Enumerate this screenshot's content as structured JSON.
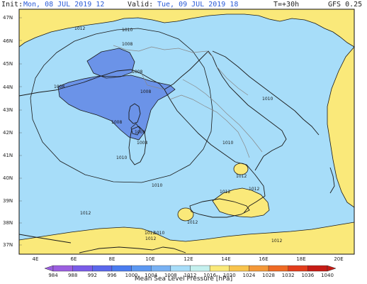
{
  "header": {
    "init_label": "Init:",
    "init_value": "Mon, 08 JUL 2019  12",
    "valid_label": "Valid:",
    "valid_value": "Tue, 09 JUL 2019  18",
    "forecast_step": "T=+30h",
    "model": "GFS 0.25"
  },
  "map": {
    "latitude_labels": [
      "47N",
      "46N",
      "45N",
      "44N",
      "43N",
      "42N",
      "41N",
      "40N",
      "39N",
      "38N",
      "37N"
    ],
    "longitude_labels": [
      "4E",
      "6E",
      "8E",
      "10E",
      "12E",
      "14E",
      "16E",
      "18E",
      "20E"
    ],
    "isobar_labels": [
      "1012",
      "1010",
      "1008",
      "1008",
      "1008",
      "1008",
      "1008",
      "1006",
      "1008",
      "1010",
      "1010",
      "1010",
      "1010",
      "1012",
      "1012",
      "1012",
      "1012",
      "1012",
      "1012",
      "1010",
      "1012",
      "1012"
    ],
    "colors": {
      "very_low": "#6b93e8",
      "low": "#a7ddf9",
      "high": "#fae97a",
      "land_border": "#1a1a1a",
      "admin_border": "#888888"
    }
  },
  "colorbar": {
    "ticks": [
      "984",
      "988",
      "992",
      "996",
      "1000",
      "1004",
      "1008",
      "1012",
      "1016",
      "1020",
      "1024",
      "1028",
      "1032",
      "1036",
      "1040"
    ],
    "colors": [
      "#9b5fe0",
      "#7a5ce8",
      "#5b67ec",
      "#4a7cf0",
      "#5c98f2",
      "#78b1f3",
      "#a7ddf9",
      "#c4f0ee",
      "#fae97a",
      "#f8c44d",
      "#f49838",
      "#ef6a24",
      "#e23d1b",
      "#c61b15"
    ],
    "title": "Mean Sea Level Pressure [hPa]"
  }
}
